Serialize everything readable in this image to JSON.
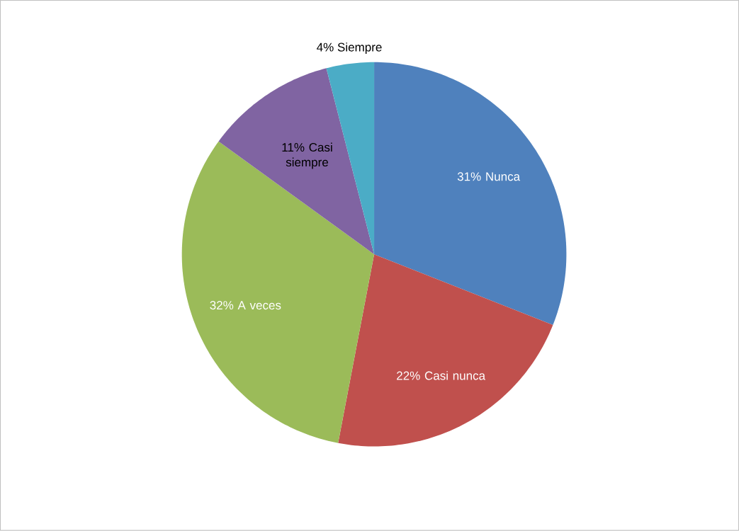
{
  "chart_data": {
    "type": "pie",
    "categories": [
      "Nunca",
      "Casi nunca",
      "A veces",
      "Casi siempre",
      "Siempre"
    ],
    "values": [
      31,
      22,
      32,
      11,
      4
    ],
    "value_labels": [
      "31%",
      "22%",
      "32%",
      "11%",
      "4%"
    ],
    "colors": [
      "#4f81bd",
      "#c0504d",
      "#9bbb59",
      "#8064a2",
      "#4bacc6"
    ]
  }
}
